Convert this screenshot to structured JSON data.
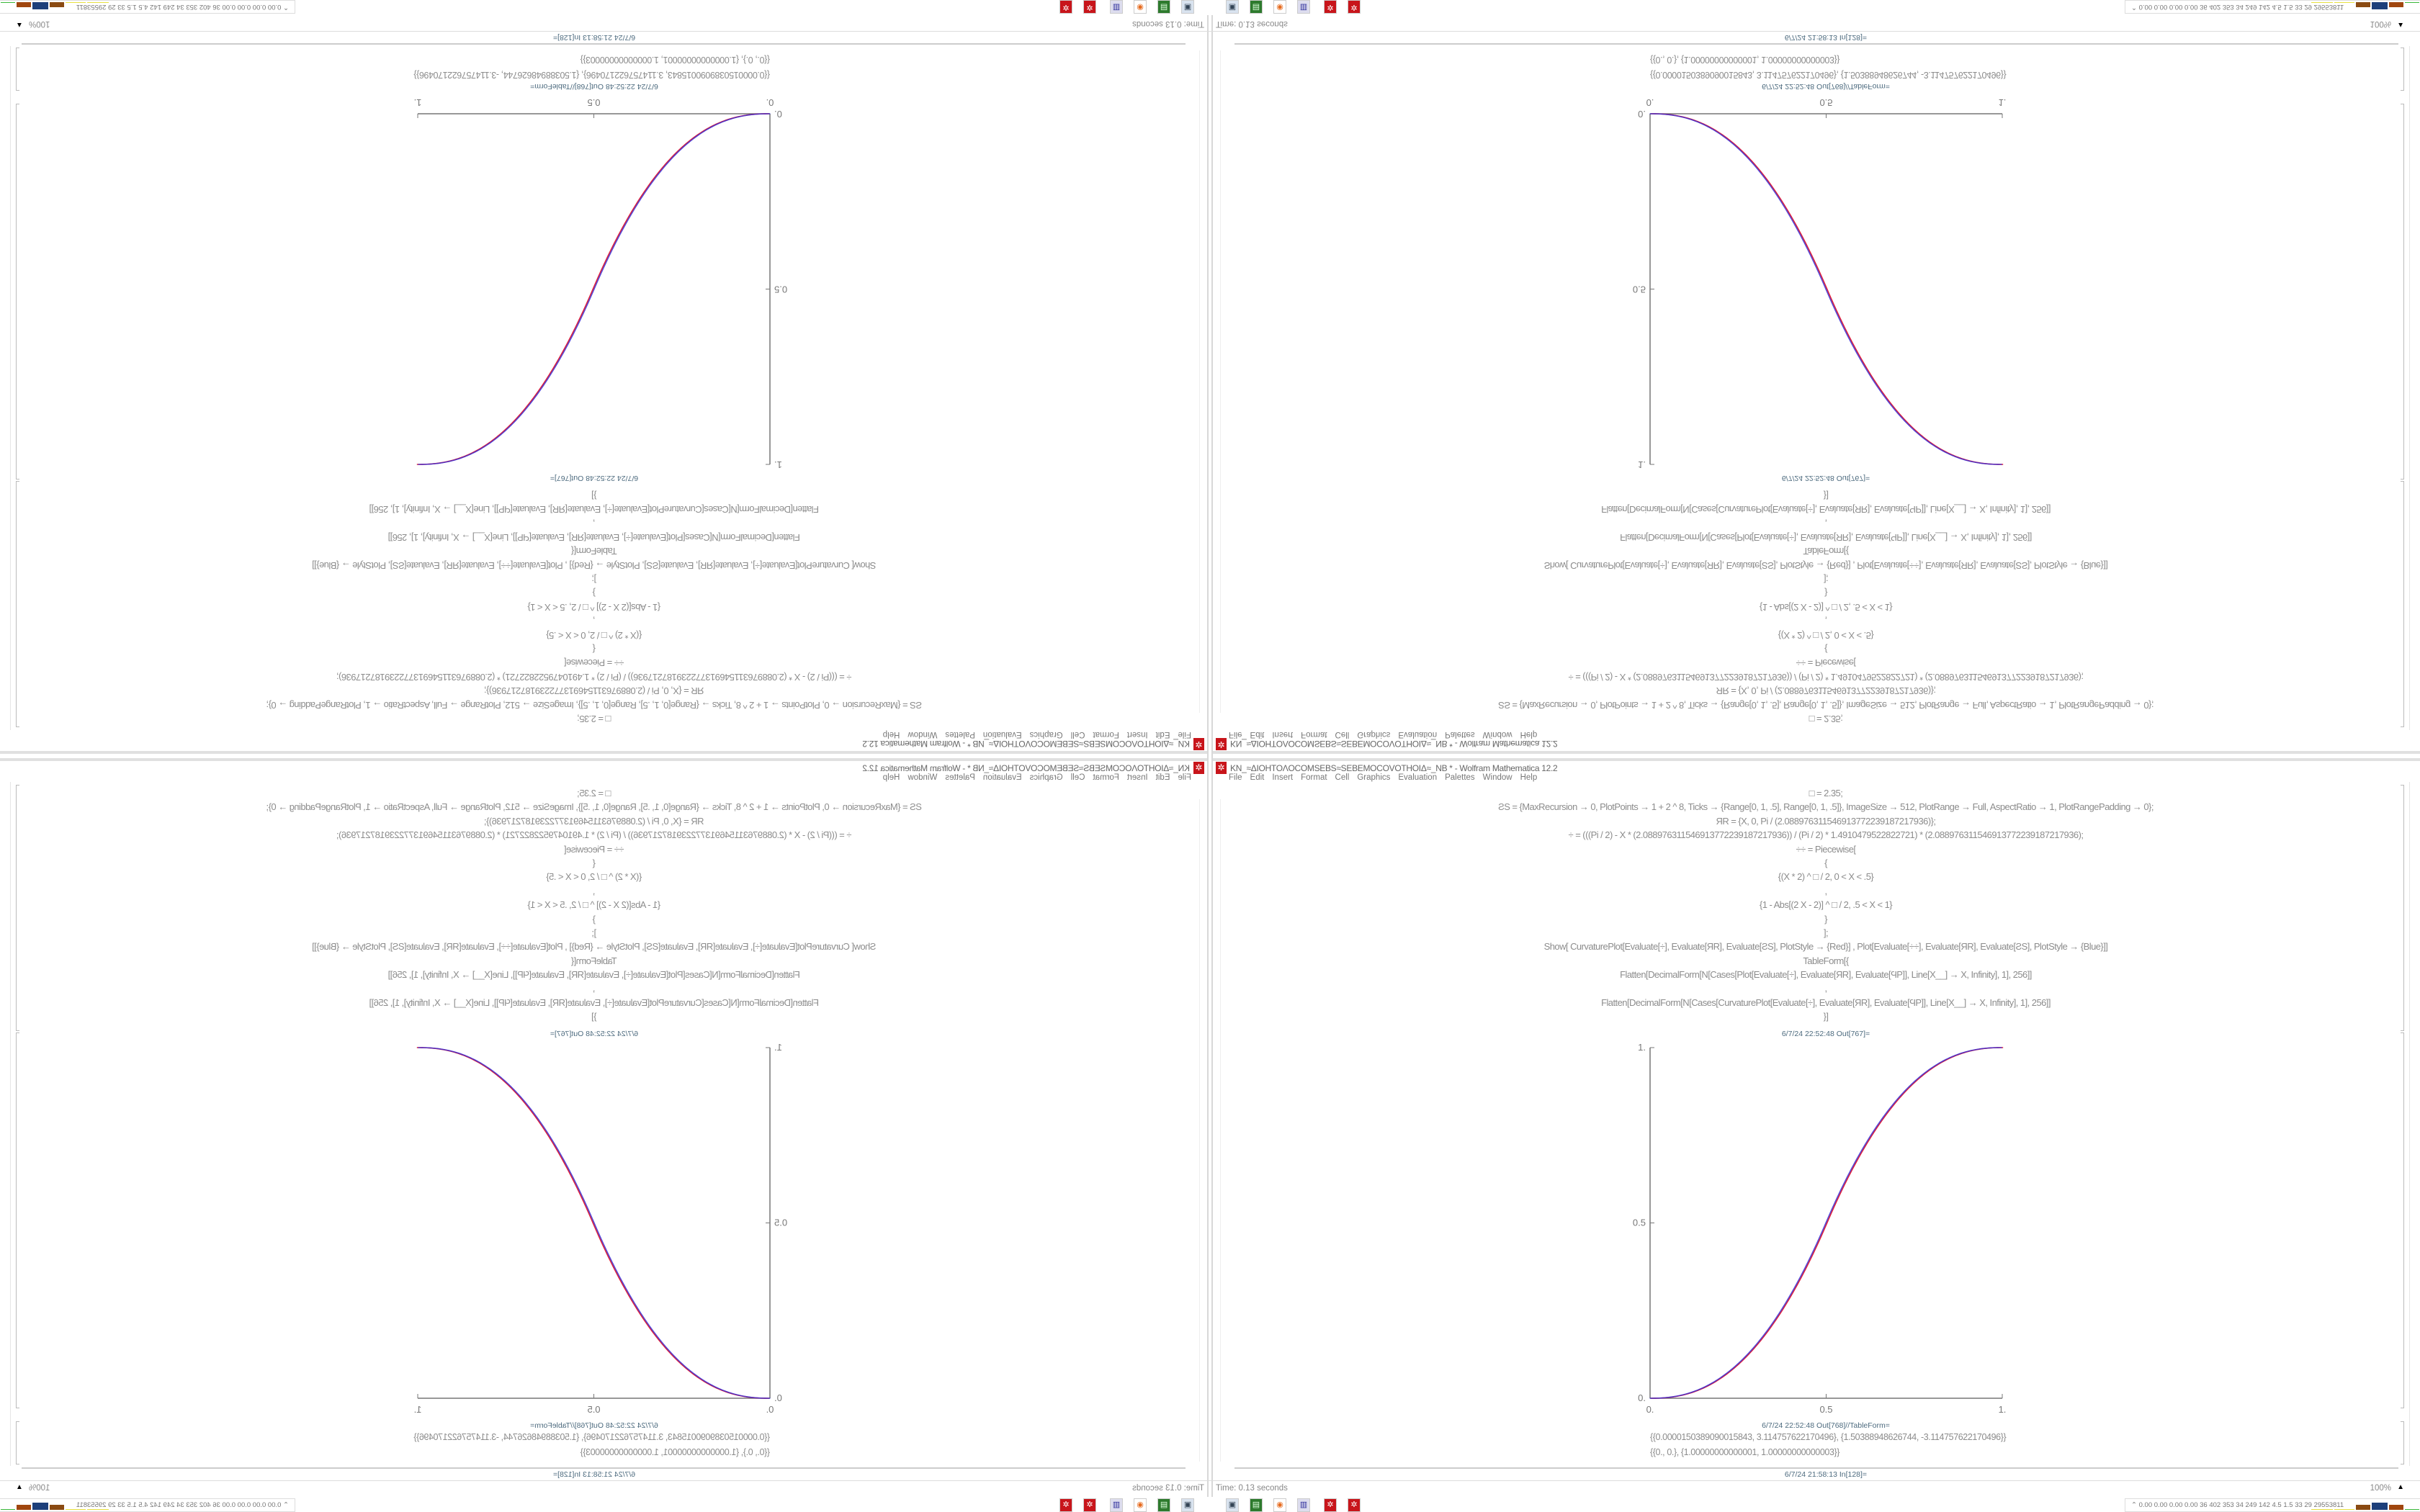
{
  "window": {
    "title": "KN_≈ΔIOHTOΛOCOMSEBS≈SEBEMOCOVOTHOIΔ≈_NB * - Wolfram Mathematica 12.2",
    "app_icon": "mathematica-gear-icon",
    "accent": "#c8151b"
  },
  "menu": [
    "File",
    "Edit",
    "Insert",
    "Format",
    "Cell",
    "Graphics",
    "Evaluation",
    "Palettes",
    "Window",
    "Help"
  ],
  "notebook": {
    "code_lines": [
      "□ = 2.35;",
      "ƧS = {MaxRecursion → 0, PlotPoints → 1 + 2 ^ 8, Ticks → {Range[0, 1, .5], Range[0, 1, .5]}, ImageSize → 512, PlotRange → Full, AspectRatio → 1, PlotRangePadding → 0};",
      "ЯR = {X, 0, Pi / (2.088976311546913772239187217936)};",
      "÷ = (((Pi / 2) - X * (2.088976311546913772239187217936)) / (Pi / 2) * 1.4910479522822721) * (2.088976311546913772239187217936);",
      "÷÷ = Piecewise[",
      "{",
      "{(X * 2) ^ □ / 2, 0 < X < .5}",
      ",",
      "{1 - Abs[(2 X - 2)] ^ □ / 2, .5 < X < 1}",
      "}",
      "];",
      "Show[   CurvaturePlot[Evaluate[÷], Evaluate[ЯR], Evaluate[ƧS], PlotStyle → {Red}]   ,   Plot[Evaluate[÷÷], Evaluate[ЯR], Evaluate[ƧS], PlotStyle → {Blue}]]",
      "TableForm[{",
      "Flatten[DecimalForm[N[Cases[Plot[Evaluate[÷], Evaluate[ЯR], Evaluate[ϤP]], Line[X__] → X, Infinity], 1], 256]]",
      ",",
      "Flatten[DecimalForm[N[Cases[CurvaturePlot[Evaluate[÷], Evaluate[ЯR], Evaluate[ϤP]], Line[X__] → X, Infinity], 1], 256]]",
      "}]"
    ],
    "out_plot_label": "6/7/24 22:52:48 Out[767]=",
    "out_table_label": "6/7/24 22:52:48 Out[768]//TableForm=",
    "out_table_rows": [
      "{{0.0000150389090015843, 3.114757622170496}, {1.50388948626744, -3.114757622170496}}",
      "{{0., 0.}, {1.00000000000001, 1.00000000000003}}"
    ],
    "in_label": "6/7/24 21:58:13 In[128]="
  },
  "chart_data": {
    "type": "line",
    "xlim": [
      0,
      1
    ],
    "ylim": [
      0,
      1
    ],
    "x_ticks": [
      "0.",
      "0.5",
      "1."
    ],
    "y_ticks": [
      "0.",
      "0.5",
      "1."
    ],
    "exponent": 2.35,
    "series": [
      {
        "style": "Red",
        "color": "#e0203a",
        "formula": "CurvaturePlot of ÷"
      },
      {
        "style": "Blue",
        "color": "#3a2bd0",
        "formula": "Piecewise (2X)^2.35/2, 1-|2X-2|^2.35/2"
      }
    ]
  },
  "status": {
    "time": "Time: 0.13 seconds",
    "zoom": "100%"
  },
  "taskbar": {
    "icons": [
      "monitor-icon",
      "green-terminal-icon",
      "firefox-icon",
      "floppy-icon",
      "mathematica-gear-icon",
      "mathematica-gear-icon"
    ],
    "tray_text": "0.00 0.00 0.00 0.00  36  402  353  34  249  142  4.5  1.5  33  29  29553811"
  }
}
